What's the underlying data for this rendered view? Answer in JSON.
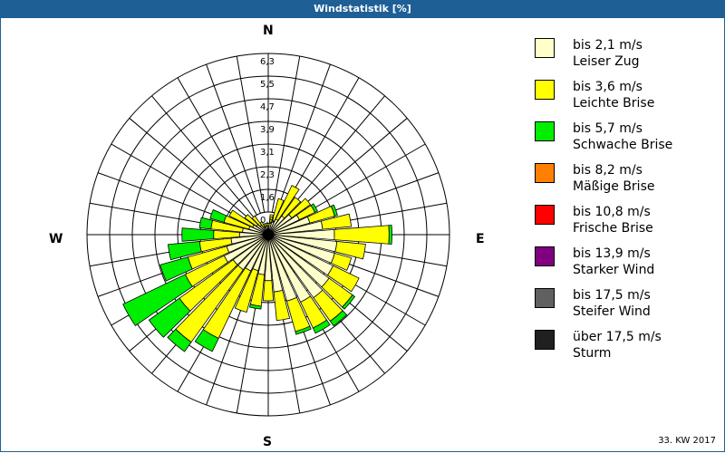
{
  "header": {
    "title": "Windstatistik [%]"
  },
  "footer": {
    "period": "33. KW 2017"
  },
  "compass": {
    "n": "N",
    "e": "E",
    "s": "S",
    "w": "W"
  },
  "legend": [
    {
      "line1": "bis 2,1 m/s",
      "line2": "Leiser Zug",
      "color": "#ffffcc"
    },
    {
      "line1": "bis 3,6 m/s",
      "line2": "Leichte Brise",
      "color": "#ffff00"
    },
    {
      "line1": "bis 5,7 m/s",
      "line2": "Schwache Brise",
      "color": "#00ee00"
    },
    {
      "line1": "bis 8,2 m/s",
      "line2": "Mäßige Brise",
      "color": "#ff8000"
    },
    {
      "line1": "bis 10,8 m/s",
      "line2": "Frische Brise",
      "color": "#ff0000"
    },
    {
      "line1": "bis 13,9 m/s",
      "line2": "Starker Wind",
      "color": "#800080"
    },
    {
      "line1": "bis 17,5 m/s",
      "line2": "Steifer Wind",
      "color": "#606060"
    },
    {
      "line1": "über 17,5 m/s",
      "line2": "Sturm",
      "color": "#202020"
    }
  ],
  "chart_data": {
    "type": "polar-stacked-bar",
    "title": "Windstatistik [%]",
    "subtitle": "33. KW 2017",
    "radial_ticks": [
      "0,8",
      "1,6",
      "2,3",
      "3,1",
      "3,9",
      "4,7",
      "5,5",
      "6,3"
    ],
    "radial_max": 6.3,
    "direction_labels": [
      "N",
      "E",
      "S",
      "W"
    ],
    "sector_width_deg": 10,
    "categories": [
      0,
      10,
      20,
      30,
      40,
      50,
      60,
      70,
      80,
      90,
      100,
      110,
      120,
      130,
      140,
      150,
      160,
      170,
      180,
      190,
      200,
      210,
      220,
      230,
      240,
      250,
      260,
      270,
      280,
      290,
      300,
      310,
      320,
      330,
      340,
      350
    ],
    "series": [
      {
        "name": "bis 2,1 m/s",
        "color": "#ffffcc",
        "values": [
          0.3,
          0.4,
          0.5,
          0.6,
          0.8,
          1.0,
          1.2,
          1.5,
          1.9,
          2.3,
          2.4,
          2.4,
          2.5,
          2.6,
          2.7,
          2.6,
          2.4,
          2.0,
          1.6,
          1.4,
          1.3,
          1.4,
          1.5,
          1.5,
          1.7,
          1.5,
          1.3,
          1.0,
          0.9,
          0.7,
          0.6,
          0.5,
          0.4,
          0.3,
          0.3,
          0.3
        ]
      },
      {
        "name": "bis 3,6 m/s",
        "color": "#ffff00",
        "values": [
          0.1,
          0.3,
          0.8,
          1.3,
          0.8,
          0.8,
          0.6,
          0.9,
          1.0,
          1.9,
          1.0,
          0.6,
          1.0,
          1.0,
          1.0,
          1.0,
          1.1,
          1.0,
          0.7,
          1.1,
          1.5,
          2.6,
          3.1,
          2.3,
          1.5,
          1.4,
          1.1,
          0.9,
          1.1,
          0.9,
          0.9,
          0.5,
          0.4,
          0.2,
          0.1,
          0.1
        ]
      },
      {
        "name": "bis 5,7 m/s",
        "color": "#00ee00",
        "values": [
          0,
          0,
          0,
          0,
          0,
          0,
          0.1,
          0.1,
          0,
          0.1,
          0,
          0,
          0,
          0.1,
          0.2,
          0.2,
          0.1,
          0,
          0,
          0.1,
          0,
          0.5,
          0.4,
          1.3,
          2.4,
          1.0,
          1.1,
          1.1,
          0.4,
          0.5,
          0,
          0,
          0,
          0,
          0,
          0
        ]
      },
      {
        "name": "bis 8,2 m/s",
        "color": "#ff8000",
        "values": [
          0,
          0,
          0,
          0,
          0,
          0,
          0,
          0,
          0,
          0,
          0,
          0,
          0,
          0,
          0,
          0,
          0,
          0,
          0,
          0,
          0,
          0,
          0,
          0,
          0,
          0,
          0,
          0,
          0,
          0,
          0,
          0,
          0,
          0,
          0,
          0
        ]
      },
      {
        "name": "bis 10,8 m/s",
        "color": "#ff0000",
        "values": [
          0,
          0,
          0,
          0,
          0,
          0,
          0,
          0,
          0,
          0,
          0,
          0,
          0,
          0,
          0,
          0,
          0,
          0,
          0,
          0,
          0,
          0,
          0,
          0,
          0,
          0,
          0,
          0,
          0,
          0,
          0,
          0,
          0,
          0,
          0,
          0
        ]
      },
      {
        "name": "bis 13,9 m/s",
        "color": "#800080",
        "values": [
          0,
          0,
          0,
          0,
          0,
          0,
          0,
          0,
          0,
          0,
          0,
          0,
          0,
          0,
          0,
          0,
          0,
          0,
          0,
          0,
          0,
          0,
          0,
          0,
          0,
          0,
          0,
          0,
          0,
          0,
          0,
          0,
          0,
          0,
          0,
          0
        ]
      },
      {
        "name": "bis 17,5 m/s",
        "color": "#606060",
        "values": [
          0,
          0,
          0,
          0,
          0,
          0,
          0,
          0,
          0,
          0,
          0,
          0,
          0,
          0,
          0,
          0,
          0,
          0,
          0,
          0,
          0,
          0,
          0,
          0,
          0,
          0,
          0,
          0,
          0,
          0,
          0,
          0,
          0,
          0,
          0,
          0
        ]
      },
      {
        "name": "über 17,5 m/s",
        "color": "#202020",
        "values": [
          0,
          0,
          0,
          0,
          0,
          0,
          0,
          0,
          0,
          0,
          0,
          0,
          0,
          0,
          0,
          0,
          0,
          0,
          0,
          0,
          0,
          0,
          0,
          0,
          0,
          0,
          0,
          0,
          0,
          0,
          0,
          0,
          0,
          0,
          0,
          0
        ]
      }
    ],
    "legend_position": "right",
    "grid": true
  }
}
